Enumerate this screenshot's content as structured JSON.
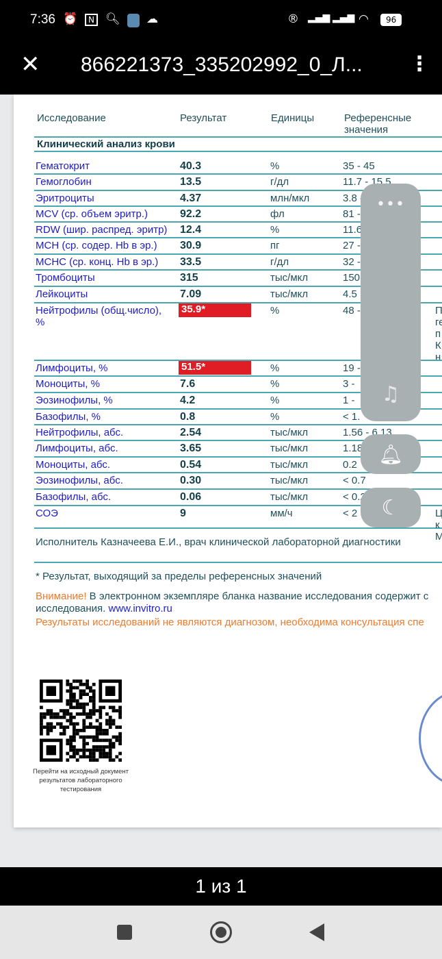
{
  "status_bar": {
    "time": "7:36",
    "battery": "96",
    "icons": [
      "alarm-icon",
      "nfc-icon",
      "search-icon",
      "app-icon",
      "cloud-icon",
      "roaming-icon",
      "signal-icon",
      "signal-icon",
      "wifi-icon",
      "battery-icon"
    ]
  },
  "topbar": {
    "title": "866221373_335202992_0_Л...",
    "close_icon": "close-icon",
    "more_icon": "more-vert-icon"
  },
  "table": {
    "headers": {
      "name": "Исследование",
      "result": "Результат",
      "units": "Единицы",
      "ref_line1": "Референсные",
      "ref_line2": "значения"
    },
    "section": "Клинический анализ крови",
    "rows": [
      {
        "name": "Гематокрит",
        "result": "40.3",
        "units": "%",
        "ref": "35 - 45"
      },
      {
        "name": "Гемоглобин",
        "result": "13.5",
        "units": "г/дл",
        "ref": "11.7 - 15.5"
      },
      {
        "name": "Эритроциты",
        "result": "4.37",
        "units": "млн/мкл",
        "ref": "3.8 -"
      },
      {
        "name": "MCV (ср. объем эритр.)",
        "result": "92.2",
        "units": "фл",
        "ref": "81 -"
      },
      {
        "name": "RDW (шир. распред. эритр)",
        "result": "12.4",
        "units": "%",
        "ref": "11.6"
      },
      {
        "name": "MCH (ср. содер. Hb в эр.)",
        "result": "30.9",
        "units": "пг",
        "ref": "27 -"
      },
      {
        "name": "MCHC (ср. конц. Hb в эр.)",
        "result": "33.5",
        "units": "г/дл",
        "ref": "32 -"
      },
      {
        "name": "Тромбоциты",
        "result": "315",
        "units": "тыс/мкл",
        "ref": "150"
      },
      {
        "name": "Лейкоциты",
        "result": "7.09",
        "units": "тыс/мкл",
        "ref": "4.5"
      },
      {
        "name": "Нейтрофилы (общ.число),",
        "name2": "%",
        "result": "35.9*",
        "flag": true,
        "units": "%",
        "ref": "48 -",
        "comment": [
          "П",
          "ге",
          "п",
          "К",
          "н"
        ]
      },
      {
        "name": "Лимфоциты, %",
        "result": "51.5*",
        "flag": true,
        "units": "%",
        "ref": "19 -"
      },
      {
        "name": "Моноциты, %",
        "result": "7.6",
        "units": "%",
        "ref": "3 -"
      },
      {
        "name": "Эозинофилы, %",
        "result": "4.2",
        "units": "%",
        "ref": "1 -"
      },
      {
        "name": "Базофилы, %",
        "result": "0.8",
        "units": "%",
        "ref": "< 1."
      },
      {
        "name": "Нейтрофилы, абс.",
        "result": "2.54",
        "units": "тыс/мкл",
        "ref": "1.56 - 6.13"
      },
      {
        "name": "Лимфоциты, абс.",
        "result": "3.65",
        "units": "тыс/мкл",
        "ref": "1.18"
      },
      {
        "name": "Моноциты, абс.",
        "result": "0.54",
        "units": "тыс/мкл",
        "ref": "0.2"
      },
      {
        "name": "Эозинофилы, абс.",
        "result": "0.30",
        "units": "тыс/мкл",
        "ref": "< 0.7"
      },
      {
        "name": "Базофилы, абс.",
        "result": "0.06",
        "units": "тыс/мкл",
        "ref": "< 0.2"
      },
      {
        "name": "СОЭ",
        "result": "9",
        "units": "мм/ч",
        "ref": "< 2",
        "comment": [
          "Ц",
          "к",
          "М"
        ]
      }
    ]
  },
  "footer": {
    "executor": "Исполнитель Казначеева  Е.И., врач клинической лабораторной диагностики",
    "note": "* Результат, выходящий за пределы референсных значений",
    "warning_label": "Внимание!",
    "warning_text": " В электронном экземпляре бланка название исследования содержит с",
    "warning_text2": "исследования. ",
    "link": "www.invitro.ru",
    "disclaimer": "Результаты исследований не являются диагнозом, необходима консультация спе",
    "qr_caption": "Перейти на исходный документ результатов лабораторного тестирования"
  },
  "overlay": {
    "icons": [
      "more-horiz-icon",
      "music-off-icon",
      "bell-icon",
      "moon-icon"
    ]
  },
  "pager": {
    "label": "1 из 1"
  },
  "nav": {
    "icons": [
      "recents-icon",
      "home-icon",
      "back-icon"
    ]
  },
  "colors": {
    "flag": "#e01c24",
    "line": "#4aa7b0",
    "name": "#1d1dc8",
    "orange": "#f07a2a"
  }
}
